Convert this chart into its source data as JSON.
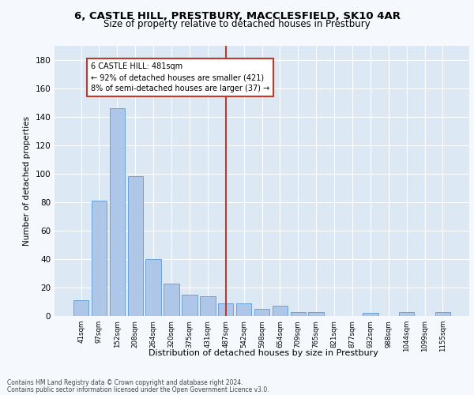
{
  "title1": "6, CASTLE HILL, PRESTBURY, MACCLESFIELD, SK10 4AR",
  "title2": "Size of property relative to detached houses in Prestbury",
  "xlabel": "Distribution of detached houses by size in Prestbury",
  "ylabel": "Number of detached properties",
  "footer1": "Contains HM Land Registry data © Crown copyright and database right 2024.",
  "footer2": "Contains public sector information licensed under the Open Government Licence v3.0.",
  "categories": [
    "41sqm",
    "97sqm",
    "152sqm",
    "208sqm",
    "264sqm",
    "320sqm",
    "375sqm",
    "431sqm",
    "487sqm",
    "542sqm",
    "598sqm",
    "654sqm",
    "709sqm",
    "765sqm",
    "821sqm",
    "877sqm",
    "932sqm",
    "988sqm",
    "1044sqm",
    "1099sqm",
    "1155sqm"
  ],
  "values": [
    11,
    81,
    146,
    98,
    40,
    23,
    15,
    14,
    9,
    9,
    5,
    7,
    3,
    3,
    0,
    0,
    2,
    0,
    3,
    0,
    3
  ],
  "bar_color": "#aec6e8",
  "bar_edge_color": "#5b9bd5",
  "vline_x_index": 8,
  "vline_color": "#c0392b",
  "annotation_title": "6 CASTLE HILL: 481sqm",
  "annotation_line1": "← 92% of detached houses are smaller (421)",
  "annotation_line2": "8% of semi-detached houses are larger (37) →",
  "annotation_box_color": "#c0392b",
  "ylim": [
    0,
    190
  ],
  "yticks": [
    0,
    20,
    40,
    60,
    80,
    100,
    120,
    140,
    160,
    180
  ],
  "plot_bg_color": "#dce9f5",
  "fig_bg_color": "#f5f8fc",
  "grid_color": "#ffffff"
}
